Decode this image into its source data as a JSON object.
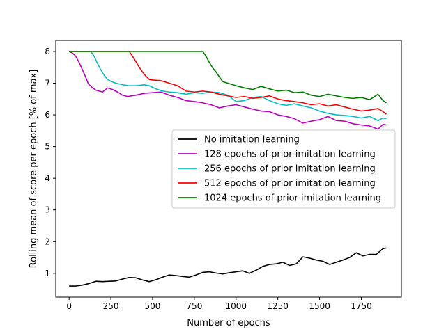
{
  "chart_data": {
    "type": "line",
    "title": "",
    "xlabel": "Number of epochs",
    "ylabel": "Rolling mean of score per epoch [% of max]",
    "xlim": [
      -80,
      1990
    ],
    "ylim": [
      0.25,
      8.35
    ],
    "xticks": [
      0,
      250,
      500,
      750,
      1000,
      1250,
      1500,
      1750
    ],
    "yticks": [
      1,
      2,
      3,
      4,
      5,
      6,
      7,
      8
    ],
    "grid": false,
    "legend_position": "center-right",
    "series": [
      {
        "name": "No imitation learning",
        "color": "#000000",
        "x": [
          0,
          40,
          80,
          120,
          160,
          200,
          240,
          280,
          320,
          360,
          400,
          440,
          480,
          520,
          560,
          600,
          640,
          680,
          720,
          760,
          800,
          840,
          880,
          920,
          960,
          1000,
          1040,
          1080,
          1120,
          1160,
          1200,
          1240,
          1280,
          1320,
          1360,
          1400,
          1440,
          1480,
          1520,
          1560,
          1600,
          1640,
          1680,
          1720,
          1760,
          1800,
          1840,
          1880,
          1900
        ],
        "y": [
          0.6,
          0.6,
          0.63,
          0.68,
          0.75,
          0.74,
          0.75,
          0.76,
          0.82,
          0.87,
          0.86,
          0.79,
          0.74,
          0.8,
          0.88,
          0.95,
          0.93,
          0.9,
          0.88,
          0.95,
          1.03,
          1.05,
          1.01,
          0.98,
          1.02,
          1.05,
          1.08,
          1.0,
          1.1,
          1.22,
          1.28,
          1.3,
          1.35,
          1.25,
          1.3,
          1.52,
          1.48,
          1.42,
          1.38,
          1.28,
          1.35,
          1.42,
          1.5,
          1.65,
          1.55,
          1.6,
          1.6,
          1.78,
          1.8
        ]
      },
      {
        "name": "128 epochs of prior imitation learning",
        "color": "#bf00bf",
        "x": [
          0,
          20,
          40,
          60,
          80,
          100,
          115,
          135,
          160,
          200,
          230,
          260,
          290,
          320,
          350,
          400,
          450,
          500,
          550,
          600,
          650,
          700,
          750,
          800,
          850,
          900,
          950,
          1000,
          1050,
          1100,
          1150,
          1200,
          1250,
          1300,
          1350,
          1400,
          1450,
          1500,
          1550,
          1600,
          1650,
          1700,
          1750,
          1800,
          1850,
          1880,
          1900
        ],
        "y": [
          8.0,
          7.95,
          7.85,
          7.65,
          7.42,
          7.18,
          6.98,
          6.88,
          6.78,
          6.72,
          6.85,
          6.8,
          6.72,
          6.62,
          6.58,
          6.62,
          6.68,
          6.7,
          6.72,
          6.62,
          6.55,
          6.45,
          6.42,
          6.38,
          6.32,
          6.22,
          6.28,
          6.32,
          6.25,
          6.18,
          6.12,
          6.1,
          6.0,
          5.95,
          5.88,
          5.74,
          5.8,
          5.85,
          5.95,
          5.82,
          5.8,
          5.72,
          5.68,
          5.65,
          5.55,
          5.7,
          5.68
        ]
      },
      {
        "name": "256 epochs of prior imitation learning",
        "color": "#00bfbf",
        "x": [
          0,
          50,
          100,
          130,
          150,
          170,
          190,
          210,
          230,
          250,
          280,
          320,
          360,
          400,
          450,
          480,
          520,
          560,
          600,
          650,
          700,
          750,
          800,
          850,
          900,
          950,
          1000,
          1050,
          1100,
          1150,
          1200,
          1250,
          1300,
          1350,
          1400,
          1450,
          1500,
          1550,
          1600,
          1650,
          1700,
          1750,
          1800,
          1850,
          1880,
          1900
        ],
        "y": [
          8.0,
          8.0,
          8.0,
          8.0,
          7.85,
          7.62,
          7.42,
          7.25,
          7.12,
          7.06,
          7.0,
          6.95,
          6.92,
          6.92,
          6.95,
          6.92,
          6.82,
          6.75,
          6.72,
          6.7,
          6.65,
          6.7,
          6.68,
          6.72,
          6.7,
          6.62,
          6.42,
          6.45,
          6.55,
          6.58,
          6.45,
          6.35,
          6.3,
          6.35,
          6.28,
          6.22,
          6.12,
          6.05,
          6.0,
          5.98,
          5.95,
          5.9,
          5.95,
          5.82,
          5.9,
          5.88
        ]
      },
      {
        "name": "512 epochs of prior imitation learning",
        "color": "#ff0000",
        "x": [
          0,
          100,
          200,
          300,
          360,
          380,
          400,
          420,
          440,
          460,
          480,
          500,
          550,
          600,
          650,
          700,
          750,
          800,
          850,
          900,
          950,
          1000,
          1050,
          1100,
          1150,
          1200,
          1250,
          1300,
          1350,
          1400,
          1450,
          1500,
          1550,
          1600,
          1650,
          1700,
          1750,
          1800,
          1850,
          1880,
          1900
        ],
        "y": [
          8.0,
          8.0,
          8.0,
          8.0,
          8.0,
          7.85,
          7.68,
          7.5,
          7.35,
          7.22,
          7.12,
          7.1,
          7.08,
          7.0,
          6.92,
          6.75,
          6.72,
          6.75,
          6.72,
          6.65,
          6.6,
          6.55,
          6.58,
          6.52,
          6.55,
          6.6,
          6.5,
          6.45,
          6.42,
          6.38,
          6.32,
          6.35,
          6.28,
          6.32,
          6.25,
          6.18,
          6.12,
          6.15,
          6.2,
          6.1,
          6.02
        ]
      },
      {
        "name": "1024 epochs of prior imitation learning",
        "color": "#008000",
        "x": [
          0,
          200,
          400,
          600,
          800,
          820,
          840,
          860,
          880,
          900,
          920,
          950,
          1000,
          1050,
          1100,
          1150,
          1200,
          1250,
          1300,
          1350,
          1400,
          1450,
          1500,
          1550,
          1600,
          1650,
          1700,
          1750,
          1800,
          1850,
          1880,
          1900
        ],
        "y": [
          8.0,
          8.0,
          8.0,
          8.0,
          8.0,
          7.85,
          7.65,
          7.48,
          7.35,
          7.2,
          7.05,
          7.0,
          6.92,
          6.85,
          6.8,
          6.9,
          6.82,
          6.75,
          6.78,
          6.7,
          6.72,
          6.62,
          6.58,
          6.65,
          6.6,
          6.55,
          6.52,
          6.55,
          6.48,
          6.65,
          6.45,
          6.38
        ]
      }
    ]
  },
  "colors": {
    "axes": "#000000",
    "background": "#ffffff",
    "legend_border": "#cccccc"
  }
}
